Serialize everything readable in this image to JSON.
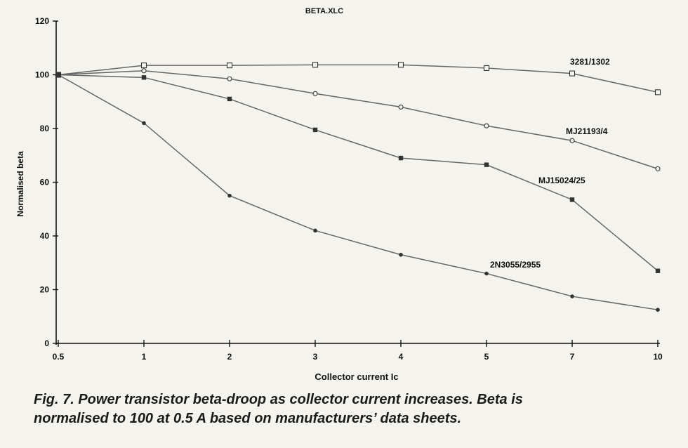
{
  "chart_data": {
    "type": "line",
    "title": "BETA.XLC",
    "xlabel": "Collector current Ic",
    "ylabel": "Normalised beta",
    "categories": [
      "0.5",
      "1",
      "2",
      "3",
      "4",
      "5",
      "7",
      "10"
    ],
    "ylim": [
      0,
      120
    ],
    "yticks": [
      0,
      20,
      40,
      60,
      80,
      100,
      120
    ],
    "grid": false,
    "legend": "inline labels at line ends",
    "series": [
      {
        "name": "3281/1302",
        "marker": "hollow-square",
        "values": [
          100,
          103.5,
          103.5,
          103.7,
          103.7,
          102.5,
          100.5,
          93.5
        ]
      },
      {
        "name": "MJ21193/4",
        "marker": "hollow-circle",
        "values": [
          100,
          101.5,
          98.5,
          93,
          88,
          81,
          75.5,
          65
        ]
      },
      {
        "name": "MJ15024/25",
        "marker": "filled-square",
        "values": [
          100,
          99,
          91,
          79.5,
          69,
          66.5,
          53.5,
          27
        ]
      },
      {
        "name": "2N3055/2955",
        "marker": "filled-circle",
        "values": [
          100,
          82,
          55,
          42,
          33,
          26,
          17.5,
          12.5
        ]
      }
    ]
  },
  "caption": {
    "line1": "Fig. 7. Power transistor beta-droop as collector current increases. Beta is",
    "line2": "normalised to 100 at 0.5 A based on manufacturers’ data sheets."
  },
  "colors": {
    "line": "#666666",
    "marker": "#333333",
    "axis": "#111111",
    "background": "#f4f3ee"
  }
}
